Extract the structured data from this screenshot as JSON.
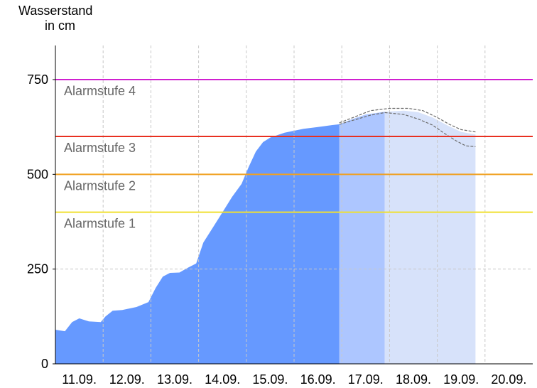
{
  "chart_data": {
    "type": "area",
    "ylabel_lines": [
      "Wasserstand",
      "in cm"
    ],
    "xlabel": "",
    "x_tick_labels": [
      "11.09.",
      "12.09.",
      "13.09.",
      "14.09.",
      "15.09.",
      "16.09.",
      "17.09.",
      "18.09.",
      "19.09.",
      "20.09."
    ],
    "xlim_days": [
      10.5,
      20.5
    ],
    "ylim": [
      0,
      840
    ],
    "y_ticks": [
      0,
      250,
      500,
      750
    ],
    "grid": true,
    "alarm_levels": [
      {
        "name": "Alarmstufe 1",
        "value": 400,
        "color": "#f0e030"
      },
      {
        "name": "Alarmstufe 2",
        "value": 500,
        "color": "#f0a020"
      },
      {
        "name": "Alarmstufe 3",
        "value": 600,
        "color": "#e83020"
      },
      {
        "name": "Alarmstufe 4",
        "value": 750,
        "color": "#d020d0"
      }
    ],
    "series": [
      {
        "role": "measured",
        "color": "#6699ff",
        "points": [
          [
            10.5,
            90
          ],
          [
            10.7,
            86
          ],
          [
            10.85,
            110
          ],
          [
            11.0,
            120
          ],
          [
            11.2,
            112
          ],
          [
            11.45,
            110
          ],
          [
            11.55,
            125
          ],
          [
            11.7,
            140
          ],
          [
            11.9,
            142
          ],
          [
            12.2,
            150
          ],
          [
            12.45,
            163
          ],
          [
            12.6,
            200
          ],
          [
            12.75,
            230
          ],
          [
            12.9,
            240
          ],
          [
            13.1,
            241
          ],
          [
            13.25,
            252
          ],
          [
            13.45,
            265
          ],
          [
            13.6,
            320
          ],
          [
            13.8,
            360
          ],
          [
            14.0,
            400
          ],
          [
            14.2,
            440
          ],
          [
            14.4,
            475
          ],
          [
            14.55,
            520
          ],
          [
            14.7,
            560
          ],
          [
            14.85,
            585
          ],
          [
            15.0,
            597
          ],
          [
            15.3,
            610
          ],
          [
            15.7,
            620
          ],
          [
            16.0,
            625
          ],
          [
            16.3,
            630
          ],
          [
            16.45,
            632
          ]
        ]
      },
      {
        "role": "forecast",
        "color": "#adc6ff",
        "points": [
          [
            16.45,
            632
          ],
          [
            16.7,
            645
          ],
          [
            17.0,
            658
          ],
          [
            17.4,
            665
          ]
        ]
      },
      {
        "role": "forecast-extended",
        "color": "#d7e2fa",
        "points": [
          [
            17.4,
            665
          ],
          [
            17.8,
            668
          ],
          [
            18.1,
            664
          ],
          [
            18.4,
            650
          ],
          [
            18.7,
            630
          ],
          [
            19.0,
            612
          ],
          [
            19.3,
            605
          ]
        ]
      }
    ],
    "uncertainty_band": {
      "color": "#6b6b6b",
      "upper": [
        [
          16.45,
          636
        ],
        [
          16.8,
          653
        ],
        [
          17.1,
          668
        ],
        [
          17.5,
          674
        ],
        [
          17.9,
          674
        ],
        [
          18.2,
          668
        ],
        [
          18.5,
          650
        ],
        [
          18.75,
          632
        ],
        [
          19.0,
          618
        ],
        [
          19.3,
          612
        ]
      ],
      "lower": [
        [
          16.45,
          632
        ],
        [
          16.8,
          645
        ],
        [
          17.1,
          656
        ],
        [
          17.4,
          663
        ],
        [
          17.8,
          658
        ],
        [
          18.1,
          646
        ],
        [
          18.4,
          630
        ],
        [
          18.65,
          608
        ],
        [
          18.9,
          588
        ],
        [
          19.1,
          575
        ],
        [
          19.3,
          573
        ]
      ]
    }
  }
}
